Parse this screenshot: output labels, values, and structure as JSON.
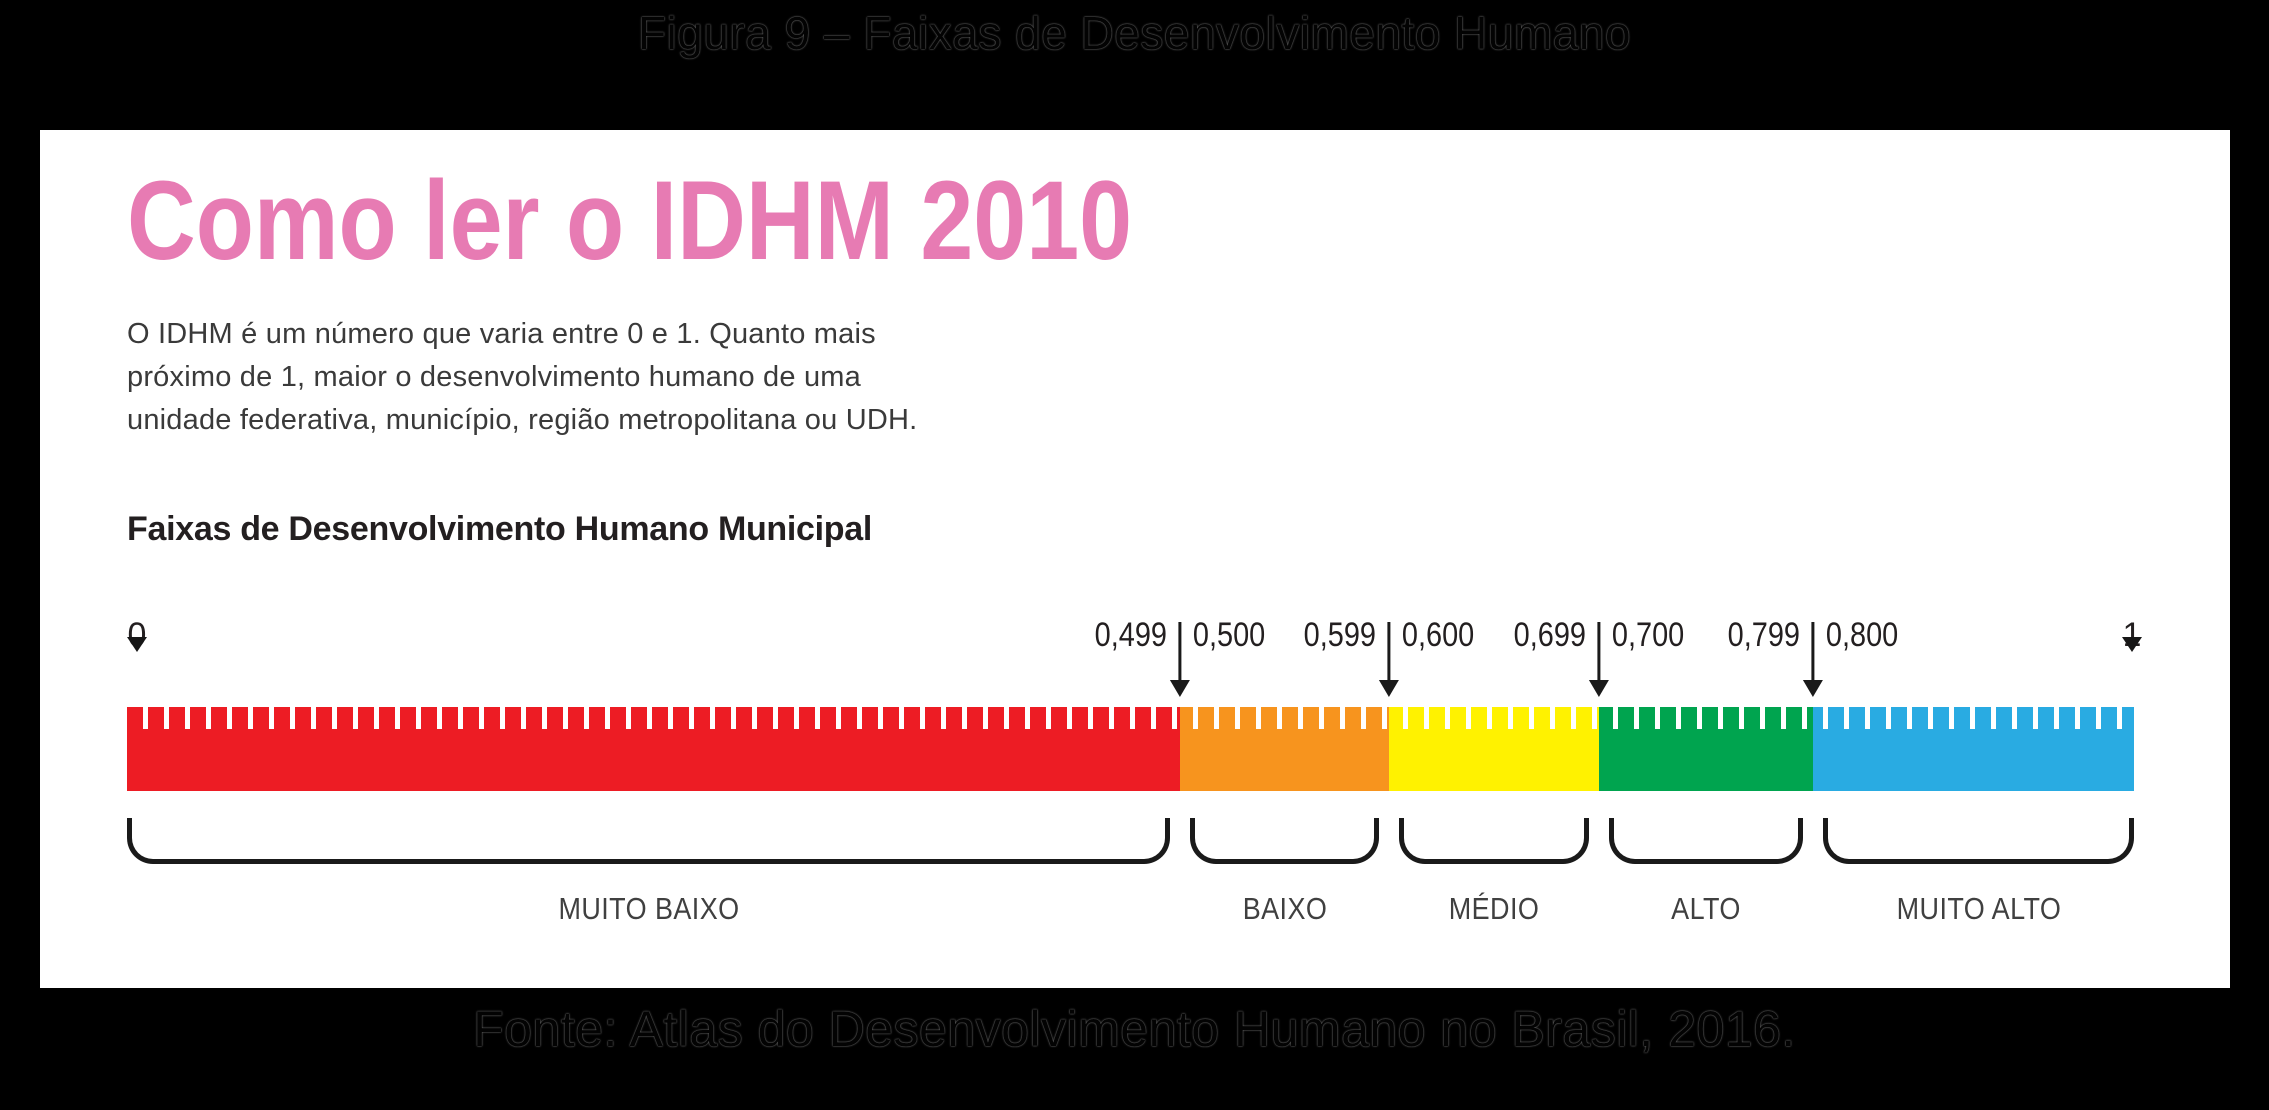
{
  "figure": {
    "title": "Figura 9 – Faixas de Desenvolvimento Humano",
    "source": "Fonte: Atlas do Desenvolvimento Humano no Brasil, 2016."
  },
  "card": {
    "title": "Como ler o IDHM 2010",
    "title_color": "#e77bb3",
    "description_lines": [
      "O IDHM é um número que varia entre 0 e 1. Quanto mais",
      "próximo de 1, maior o desenvolvimento humano de uma",
      "unidade federativa, município, região metropolitana ou UDH."
    ],
    "scale_heading": "Faixas de Desenvolvimento Humano Municipal",
    "scale": {
      "min_label": "0",
      "max_label": "1",
      "boundaries": [
        {
          "left": "0,499",
          "right": "0,500"
        },
        {
          "left": "0,599",
          "right": "0,600"
        },
        {
          "left": "0,699",
          "right": "0,700"
        },
        {
          "left": "0,799",
          "right": "0,800"
        }
      ],
      "segments": [
        {
          "label": "MUITO BAIXO",
          "color": "#ed1c24"
        },
        {
          "label": "BAIXO",
          "color": "#f7941e"
        },
        {
          "label": "MÉDIO",
          "color": "#fff200"
        },
        {
          "label": "ALTO",
          "color": "#00a44f"
        },
        {
          "label": "MUITO ALTO",
          "color": "#29abe2"
        }
      ]
    }
  }
}
